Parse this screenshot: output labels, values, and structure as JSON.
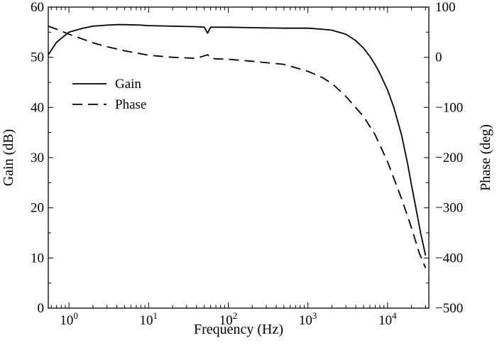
{
  "chart_data": {
    "type": "line",
    "x_scale": "log",
    "xlabel": "Frequency (Hz)",
    "ylabel_left": "Gain (dB)",
    "ylabel_right": "Phase (deg)",
    "xlim": [
      0.55,
      33000
    ],
    "ylim_left": [
      0,
      60
    ],
    "ylim_right": [
      -500,
      100
    ],
    "x_ticks": [
      {
        "value": 1,
        "base": "10",
        "exp": "0"
      },
      {
        "value": 10,
        "base": "10",
        "exp": "1"
      },
      {
        "value": 100,
        "base": "10",
        "exp": "2"
      },
      {
        "value": 1000,
        "base": "10",
        "exp": "3"
      },
      {
        "value": 10000,
        "base": "10",
        "exp": "4"
      }
    ],
    "y_ticks_left": [
      0,
      10,
      20,
      30,
      40,
      50,
      60
    ],
    "y_ticks_right": [
      100,
      0,
      -100,
      -200,
      -300,
      -400,
      -500
    ],
    "y_tick_labels_right": [
      "100",
      "0",
      "−100",
      "−200",
      "−300",
      "−400",
      "−500"
    ],
    "grid": false,
    "legend_position": "upper-left",
    "series": [
      {
        "name": "Gain",
        "axis": "left",
        "style": "solid",
        "color": "#000000",
        "x": [
          0.55,
          0.7,
          1,
          1.5,
          2,
          3,
          4,
          5,
          8,
          10,
          20,
          40,
          50,
          55,
          60,
          70,
          100,
          200,
          500,
          1000,
          1500,
          2000,
          3000,
          4000,
          5000,
          6000,
          7000,
          8000,
          10000,
          12000,
          15000,
          18000,
          20000,
          23000,
          26000,
          30000
        ],
        "y": [
          50.5,
          53.0,
          55.0,
          55.8,
          56.2,
          56.4,
          56.5,
          56.5,
          56.4,
          56.3,
          56.2,
          56.1,
          56.0,
          54.8,
          56.0,
          56.0,
          56.0,
          55.9,
          55.8,
          55.8,
          55.6,
          55.4,
          54.6,
          53.3,
          51.8,
          50.2,
          48.5,
          46.8,
          43.5,
          40.0,
          34.5,
          28.5,
          24.5,
          19.5,
          15.0,
          10.5
        ]
      },
      {
        "name": "Phase",
        "axis": "right",
        "style": "dashed",
        "color": "#000000",
        "x": [
          0.55,
          0.7,
          1,
          1.5,
          2,
          3,
          5,
          10,
          20,
          40,
          55,
          60,
          70,
          100,
          200,
          500,
          1000,
          1500,
          2000,
          3000,
          5000,
          7000,
          10000,
          15000,
          20000,
          25000,
          30000
        ],
        "y": [
          62,
          56,
          46,
          36,
          29,
          21,
          13,
          4,
          0,
          -2,
          5,
          -2,
          -3,
          -4,
          -8,
          -14,
          -28,
          -40,
          -52,
          -78,
          -118,
          -155,
          -208,
          -282,
          -340,
          -390,
          -420
        ]
      }
    ]
  }
}
